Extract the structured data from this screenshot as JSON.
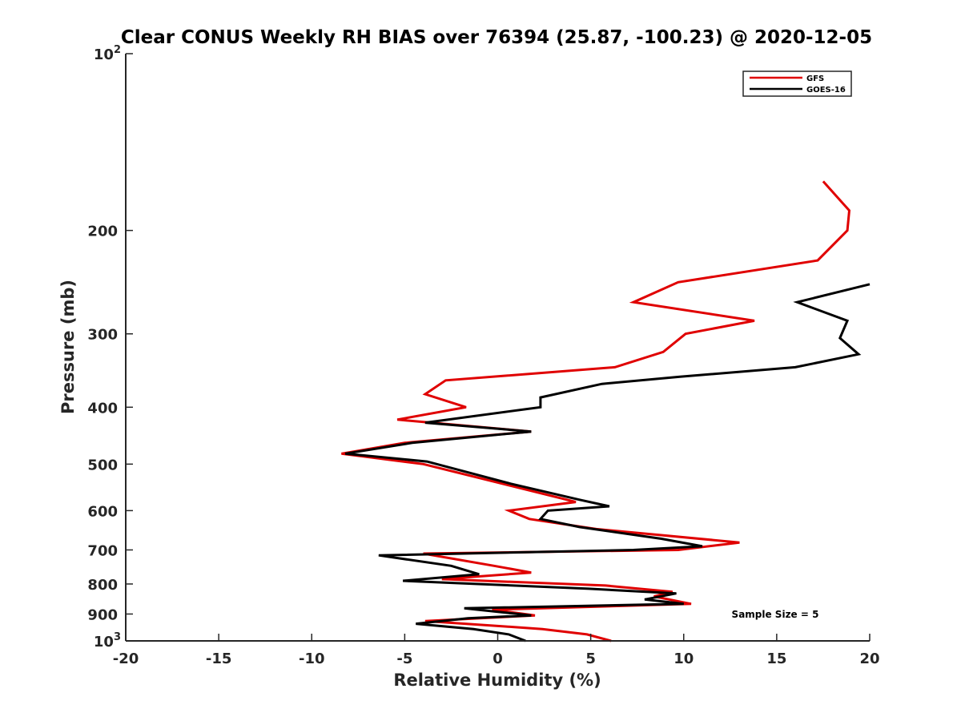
{
  "chart_data": {
    "type": "line",
    "title": "Clear CONUS Weekly RH BIAS over 76394 (25.87, -100.23) @ 2020-12-05",
    "xlabel": "Relative Humidity (%)",
    "ylabel": "Pressure (mb)",
    "xlim": [
      -20,
      20
    ],
    "ylim": [
      100,
      1000
    ],
    "y_scale": "log",
    "y_reversed": true,
    "grid": false,
    "legend_position": "top-right",
    "x_ticks": [
      -20,
      -15,
      -10,
      -5,
      0,
      5,
      10,
      15,
      20
    ],
    "y_ticks": [
      {
        "value": 100,
        "base": "10",
        "exp": "2"
      },
      {
        "value": 200,
        "label": "200"
      },
      {
        "value": 300,
        "label": "300"
      },
      {
        "value": 400,
        "label": "400"
      },
      {
        "value": 500,
        "label": "500"
      },
      {
        "value": 600,
        "label": "600"
      },
      {
        "value": 700,
        "label": "700"
      },
      {
        "value": 800,
        "label": "800"
      },
      {
        "value": 900,
        "label": "900"
      },
      {
        "value": 1000,
        "base": "10",
        "exp": "3"
      }
    ],
    "annotation": "Sample Size = 5",
    "series": [
      {
        "name": "GFS",
        "color": "#e00000",
        "points": [
          {
            "x": 17.5,
            "p": 165
          },
          {
            "x": 18.9,
            "p": 185
          },
          {
            "x": 18.8,
            "p": 200
          },
          {
            "x": 17.2,
            "p": 225
          },
          {
            "x": 9.7,
            "p": 245
          },
          {
            "x": 7.3,
            "p": 265
          },
          {
            "x": 13.8,
            "p": 285
          },
          {
            "x": 10.1,
            "p": 300
          },
          {
            "x": 8.9,
            "p": 322
          },
          {
            "x": 6.3,
            "p": 342
          },
          {
            "x": -2.8,
            "p": 360
          },
          {
            "x": -3.9,
            "p": 380
          },
          {
            "x": -1.7,
            "p": 400
          },
          {
            "x": -5.4,
            "p": 420
          },
          {
            "x": 1.8,
            "p": 440
          },
          {
            "x": -5.0,
            "p": 460
          },
          {
            "x": -8.4,
            "p": 480
          },
          {
            "x": -4.0,
            "p": 500
          },
          {
            "x": 4.2,
            "p": 580
          },
          {
            "x": 0.6,
            "p": 600
          },
          {
            "x": 1.7,
            "p": 620
          },
          {
            "x": 5.3,
            "p": 645
          },
          {
            "x": 13.0,
            "p": 680
          },
          {
            "x": 9.7,
            "p": 700
          },
          {
            "x": -4.0,
            "p": 710
          },
          {
            "x": -0.2,
            "p": 745
          },
          {
            "x": 1.8,
            "p": 765
          },
          {
            "x": -3.0,
            "p": 785
          },
          {
            "x": 5.8,
            "p": 805
          },
          {
            "x": 9.4,
            "p": 825
          },
          {
            "x": 8.4,
            "p": 840
          },
          {
            "x": 10.4,
            "p": 865
          },
          {
            "x": -0.3,
            "p": 885
          },
          {
            "x": 2.0,
            "p": 905
          },
          {
            "x": -3.9,
            "p": 925
          },
          {
            "x": 0.4,
            "p": 945
          },
          {
            "x": 2.4,
            "p": 955
          },
          {
            "x": 4.8,
            "p": 975
          },
          {
            "x": 6.1,
            "p": 1000
          }
        ]
      },
      {
        "name": "GOES-16",
        "color": "#000000",
        "points": [
          {
            "x": 20.0,
            "p": 247
          },
          {
            "x": 16.1,
            "p": 265
          },
          {
            "x": 18.8,
            "p": 285
          },
          {
            "x": 18.4,
            "p": 305
          },
          {
            "x": 19.4,
            "p": 325
          },
          {
            "x": 16.0,
            "p": 342
          },
          {
            "x": 9.8,
            "p": 355
          },
          {
            "x": 5.6,
            "p": 365
          },
          {
            "x": 2.3,
            "p": 385
          },
          {
            "x": 2.3,
            "p": 400
          },
          {
            "x": -3.9,
            "p": 425
          },
          {
            "x": 1.8,
            "p": 440
          },
          {
            "x": -4.6,
            "p": 460
          },
          {
            "x": -8.2,
            "p": 480
          },
          {
            "x": -3.8,
            "p": 495
          },
          {
            "x": 0.7,
            "p": 540
          },
          {
            "x": 4.4,
            "p": 575
          },
          {
            "x": 6.0,
            "p": 590
          },
          {
            "x": 2.7,
            "p": 600
          },
          {
            "x": 2.3,
            "p": 620
          },
          {
            "x": 4.4,
            "p": 640
          },
          {
            "x": 8.8,
            "p": 670
          },
          {
            "x": 11.0,
            "p": 690
          },
          {
            "x": 7.3,
            "p": 700
          },
          {
            "x": -6.4,
            "p": 715
          },
          {
            "x": -2.5,
            "p": 745
          },
          {
            "x": -1.0,
            "p": 770
          },
          {
            "x": -5.1,
            "p": 790
          },
          {
            "x": 4.9,
            "p": 815
          },
          {
            "x": 9.6,
            "p": 830
          },
          {
            "x": 7.9,
            "p": 850
          },
          {
            "x": 10.0,
            "p": 865
          },
          {
            "x": -1.8,
            "p": 880
          },
          {
            "x": 1.8,
            "p": 905
          },
          {
            "x": -1.6,
            "p": 915
          },
          {
            "x": -4.4,
            "p": 935
          },
          {
            "x": -1.3,
            "p": 955
          },
          {
            "x": 0.6,
            "p": 975
          },
          {
            "x": 1.5,
            "p": 1000
          }
        ]
      }
    ]
  }
}
